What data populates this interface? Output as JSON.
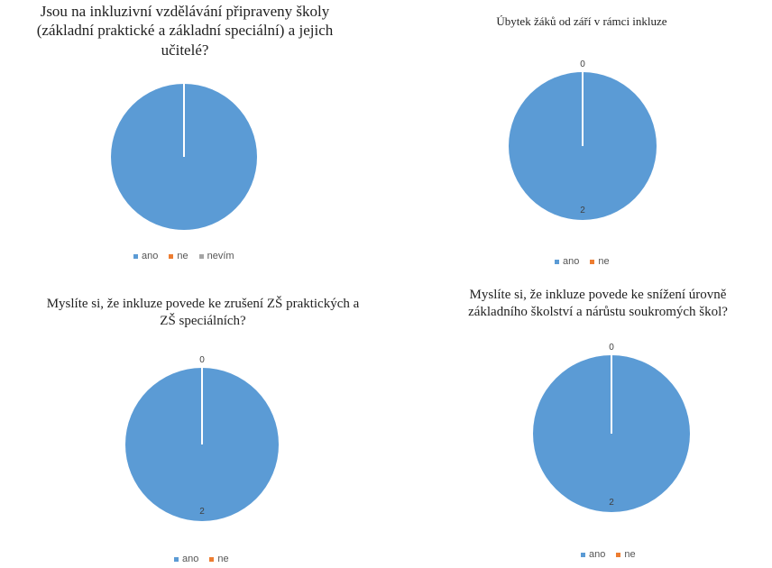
{
  "chart_data": [
    {
      "type": "pie",
      "title": "Jsou na inkluzivní vzdělávání připraveny školy (základní praktické a základní speciální) a jejich učitelé?",
      "title_lines": [
        "Jsou na inkluzivní vzdělávání připraveny školy",
        "(základní praktické a základní speciální) a jejich",
        "učitelé?"
      ],
      "categories": [
        "ano",
        "ne",
        "nevím"
      ],
      "values": [
        2,
        0,
        0
      ],
      "colors": [
        "#5b9bd5",
        "#ed7d31",
        "#a5a5a5"
      ],
      "data_labels": [],
      "legend": "bottom"
    },
    {
      "type": "pie",
      "title": "Úbytek žáků od září v rámci inkluze",
      "title_lines": [
        "Úbytek žáků od září v rámci inkluze"
      ],
      "categories": [
        "ano",
        "ne"
      ],
      "values": [
        2,
        0
      ],
      "colors": [
        "#5b9bd5",
        "#ed7d31"
      ],
      "data_labels": [
        "2",
        "0"
      ],
      "legend": "bottom"
    },
    {
      "type": "pie",
      "title": "Myslíte si, že inkluze povede ke zrušení ZŠ praktických a ZŠ speciálních?",
      "title_lines": [
        "Myslíte si, že inkluze povede ke zrušení ZŠ praktických  a",
        "ZŠ speciálních?"
      ],
      "categories": [
        "ano",
        "ne"
      ],
      "values": [
        2,
        0
      ],
      "colors": [
        "#5b9bd5",
        "#ed7d31"
      ],
      "data_labels": [
        "2",
        "0"
      ],
      "legend": "bottom"
    },
    {
      "type": "pie",
      "title": "Myslíte si, že inkluze povede ke snížení úrovně základního školství a nárůstu soukromých škol?",
      "title_lines": [
        "Myslíte si, že inkluze povede ke snížení úrovně",
        "základního školství a nárůstu soukromých škol?"
      ],
      "categories": [
        "ano",
        "ne"
      ],
      "values": [
        2,
        0
      ],
      "colors": [
        "#5b9bd5",
        "#ed7d31"
      ],
      "data_labels": [
        "2",
        "0"
      ],
      "legend": "bottom"
    }
  ]
}
